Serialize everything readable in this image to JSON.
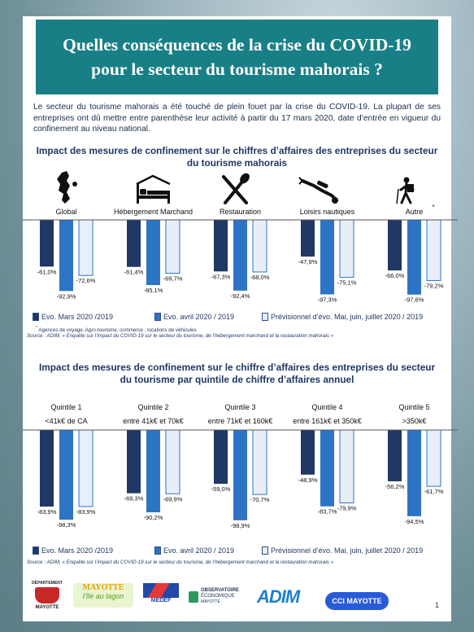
{
  "title": "Quelles conséquences de la crise du COVID-19 pour le secteur du tourisme mahorais ?",
  "intro": "Le secteur du tourisme mahorais a été touché de plein fouet par la crise du COVID-19. La plupart de ses entreprises ont dû mettre entre parenthèse leur activité à partir du 17 mars 2020, date d’entrée en vigueur du confinement au niveau national.",
  "colors": {
    "series1": "#1f3864",
    "series2": "#2e74c4",
    "series3": "#e8eef8",
    "title_bg": "#197f86"
  },
  "chart_data": [
    {
      "type": "bar",
      "title": "Impact des mesures de confinement sur le chiffres d’affaires des entreprises du secteur du tourisme mahorais",
      "categories": [
        "Global",
        "Hébergement Marchand",
        "Restauration",
        "Loisirs nautiques",
        "Autre"
      ],
      "category_icons": [
        "mayotte-map-icon",
        "bed-icon",
        "fork-knife-icon",
        "diver-icon",
        "hiker-icon"
      ],
      "category_marks": [
        "",
        "",
        "",
        "",
        "*"
      ],
      "series": [
        {
          "name": "Evo. Mars 2020 /2019",
          "values": [
            -61.0,
            -61.4,
            -67.3,
            -47.9,
            -66.0
          ]
        },
        {
          "name": "Evo. avril 2020 / 2019",
          "values": [
            -92.9,
            -85.1,
            -92.4,
            -97.3,
            -97.6
          ]
        },
        {
          "name": "Prévisionnel d’évo. Mai, juin, juillet 2020 / 2019",
          "values": [
            -72.6,
            -69.7,
            -68.0,
            -75.1,
            -79.2
          ]
        }
      ],
      "labels": [
        [
          "-61,0%",
          "-61,4%",
          "-67,3%",
          "-47,9%",
          "-66,0%"
        ],
        [
          "-92,9%",
          "-85,1%",
          "-92,4%",
          "-97,3%",
          "-97,6%"
        ],
        [
          "-72,6%",
          "-69,7%",
          "-68,0%",
          "-75,1%",
          "-79,2%"
        ]
      ],
      "ylim": [
        -100,
        0
      ],
      "footnote": "Agences de voyage, Agro-tourisme, commerce , locations de véhicules",
      "source": "Source : ADIM, « Enquête sur l’impact du COVID-19 sur le secteur du tourisme, de l’hébergement marchand et la restauration mahorais »"
    },
    {
      "type": "bar",
      "title": "Impact des mesures de confinement sur le chiffre d’affaires des entreprises du secteur du tourisme par quintile de chiffre d’affaires annuel",
      "categories": [
        "Quintile 1",
        "Quintile 2",
        "Quintile 3",
        "Quintile 4",
        "Quintile 5"
      ],
      "subcategories": [
        "<41k€ de CA",
        "entre 41k€  et 70k€",
        "entre 71k€ et 160k€",
        "entre 161k€ et 350k€",
        ">350k€"
      ],
      "series": [
        {
          "name": "Evo. Mars 2020 /2019",
          "values": [
            -83.9,
            -69.3,
            -59.0,
            -48.9,
            -56.2
          ]
        },
        {
          "name": "Evo. avril 2020 / 2019",
          "values": [
            -98.3,
            -90.2,
            -98.9,
            -83.7,
            -94.5
          ]
        },
        {
          "name": "Prévisionnel d’évo. Mai, juin, juillet 2020 / 2019",
          "values": [
            -83.9,
            -69.9,
            -70.7,
            -79.9,
            -61.7
          ]
        }
      ],
      "labels": [
        [
          "-83,9%",
          "-69,3%",
          "-59,0%",
          "-48,9%",
          "-56,2%"
        ],
        [
          "-98,3%",
          "-90,2%",
          "-98,9%",
          "-83,7%",
          "-94,5%"
        ],
        [
          "-83,9%",
          "-69,9%",
          "-70,7%",
          "-79,9%",
          "-61,7%"
        ]
      ],
      "ylim": [
        -100,
        0
      ],
      "source": "Source : ADIM, « Enquête sur l’impact du COVID-19 sur le secteur du tourisme, de l’hébergement marchand et la restauration mahorais »"
    }
  ],
  "logos": {
    "departement_top": "DÉPARTEMENT",
    "departement_bottom": "MAYOTTE",
    "tourism_main": "MAYOTTE",
    "tourism_sub": "l’île au lagon",
    "medef": "MEDEF",
    "observatoire_1": "OBSERVATOIRE",
    "observatoire_2": "ÉCONOMIQUE",
    "observatoire_3": "MAYOTTE",
    "adim": "ADIM",
    "cci": "CCI MAYOTTE"
  },
  "page_number": "1"
}
